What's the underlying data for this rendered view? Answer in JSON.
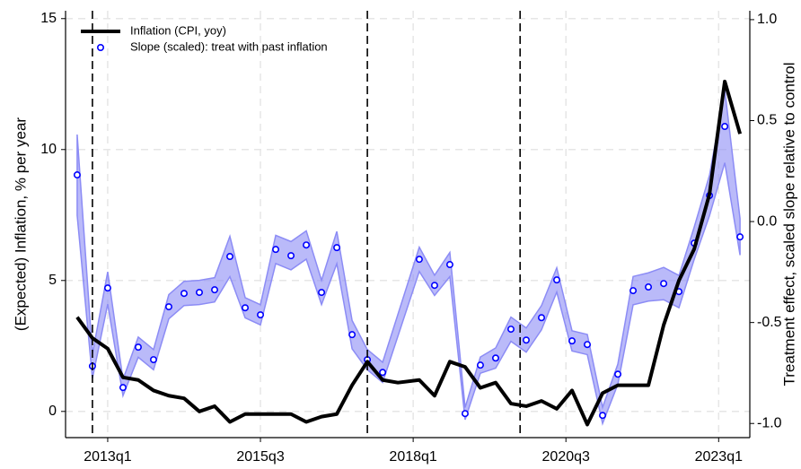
{
  "chart_data": {
    "type": "line",
    "y_label": "(Expected) Inflation, % per year",
    "y2_label": "Treatment effect, scaled slope relative to control",
    "xlim": [
      2012.31,
      2023.51
    ],
    "xticks": [
      {
        "value": 2013,
        "label": "2013q1"
      },
      {
        "value": 2015.5,
        "label": "2015q3"
      },
      {
        "value": 2018,
        "label": "2018q1"
      },
      {
        "value": 2020.5,
        "label": "2020q3"
      },
      {
        "value": 2023,
        "label": "2023q1"
      }
    ],
    "ylim": [
      -1.0,
      15.3
    ],
    "yticks": [
      0,
      5,
      10,
      15
    ],
    "y2lim": [
      -1.07,
      1.044
    ],
    "y2ticks": [
      {
        "value": -1,
        "label": "-1.0"
      },
      -0.5,
      {
        "value": 0,
        "label": "0.0"
      },
      0.5,
      {
        "value": 1,
        "label": "1.0"
      }
    ],
    "grid": true,
    "legend": "upper left",
    "vlines": [
      2012.75,
      2017.25,
      2019.75
    ],
    "series": [
      {
        "name": "Inflation (CPI, yoy)",
        "type": "line",
        "color": "#000000",
        "x": [
          2012.5,
          2012.75,
          2013,
          2013.25,
          2013.5,
          2013.75,
          2014,
          2014.25,
          2014.5,
          2014.75,
          2015,
          2015.25,
          2015.5,
          2015.75,
          2016,
          2016.25,
          2016.5,
          2016.75,
          2017,
          2017.25,
          2017.5,
          2017.75,
          2018.1,
          2018.35,
          2018.6,
          2018.85,
          2019.1,
          2019.35,
          2019.6,
          2019.85,
          2020.1,
          2020.35,
          2020.6,
          2020.85,
          2021.1,
          2021.35,
          2021.6,
          2021.85,
          2022.1,
          2022.35,
          2022.6,
          2022.85,
          2023.1,
          2023.35
        ],
        "values": [
          3.6,
          2.8,
          2.4,
          1.3,
          1.2,
          0.8,
          0.6,
          0.5,
          0.0,
          0.2,
          -0.4,
          -0.1,
          -0.1,
          -0.1,
          -0.1,
          -0.4,
          -0.2,
          -0.1,
          1.0,
          1.9,
          1.2,
          1.1,
          1.2,
          0.6,
          1.9,
          1.7,
          0.9,
          1.1,
          0.3,
          0.2,
          0.4,
          0.1,
          0.8,
          -0.5,
          0.7,
          1.0,
          1.0,
          1.0,
          3.3,
          5.0,
          6.2,
          8.3,
          12.6,
          10.6
        ]
      },
      {
        "name": "Slope (scaled): treat with past inflation",
        "type": "scatter",
        "axis": "y2",
        "color": "#0000ff",
        "band_color": "#8c8cf5",
        "x": [
          2012.5,
          2012.75,
          2013,
          2013.25,
          2013.5,
          2013.75,
          2014,
          2014.25,
          2014.5,
          2014.75,
          2015,
          2015.25,
          2015.5,
          2015.75,
          2016,
          2016.25,
          2016.5,
          2016.75,
          2017,
          2017.25,
          2017.5,
          2018.1,
          2018.35,
          2018.6,
          2018.85,
          2019.1,
          2019.35,
          2019.6,
          2019.85,
          2020.1,
          2020.35,
          2020.6,
          2020.85,
          2021.1,
          2021.35,
          2021.6,
          2021.85,
          2022.1,
          2022.35,
          2022.6,
          2022.85,
          2023.1,
          2023.35
        ],
        "values": [
          0.231,
          -0.716,
          -0.329,
          -0.822,
          -0.622,
          -0.684,
          -0.422,
          -0.356,
          -0.351,
          -0.338,
          -0.173,
          -0.427,
          -0.462,
          -0.138,
          -0.169,
          -0.116,
          -0.351,
          -0.129,
          -0.56,
          -0.684,
          -0.747,
          -0.187,
          -0.316,
          -0.213,
          -0.951,
          -0.711,
          -0.676,
          -0.533,
          -0.587,
          -0.476,
          -0.289,
          -0.591,
          -0.609,
          -0.96,
          -0.756,
          -0.342,
          -0.324,
          -0.307,
          -0.347,
          -0.107,
          0.129,
          0.471,
          -0.076
        ],
        "ci_lower": [
          0.031,
          -0.776,
          -0.409,
          -0.862,
          -0.672,
          -0.734,
          -0.482,
          -0.416,
          -0.411,
          -0.398,
          -0.273,
          -0.477,
          -0.512,
          -0.208,
          -0.239,
          -0.186,
          -0.411,
          -0.209,
          -0.63,
          -0.734,
          -0.797,
          -0.247,
          -0.366,
          -0.273,
          -0.981,
          -0.751,
          -0.726,
          -0.593,
          -0.647,
          -0.536,
          -0.349,
          -0.641,
          -0.659,
          -1.0,
          -0.806,
          -0.412,
          -0.394,
          -0.387,
          -0.427,
          -0.187,
          0.029,
          0.291,
          -0.166
        ],
        "ci_upper": [
          0.431,
          -0.656,
          -0.249,
          -0.782,
          -0.572,
          -0.634,
          -0.362,
          -0.296,
          -0.291,
          -0.278,
          -0.073,
          -0.377,
          -0.412,
          -0.068,
          -0.099,
          -0.046,
          -0.291,
          -0.049,
          -0.49,
          -0.634,
          -0.697,
          -0.127,
          -0.266,
          -0.153,
          -0.921,
          -0.671,
          -0.626,
          -0.473,
          -0.527,
          -0.416,
          -0.229,
          -0.541,
          -0.559,
          -0.92,
          -0.706,
          -0.272,
          -0.254,
          -0.227,
          -0.267,
          -0.027,
          0.229,
          0.651,
          0.014
        ]
      }
    ]
  }
}
